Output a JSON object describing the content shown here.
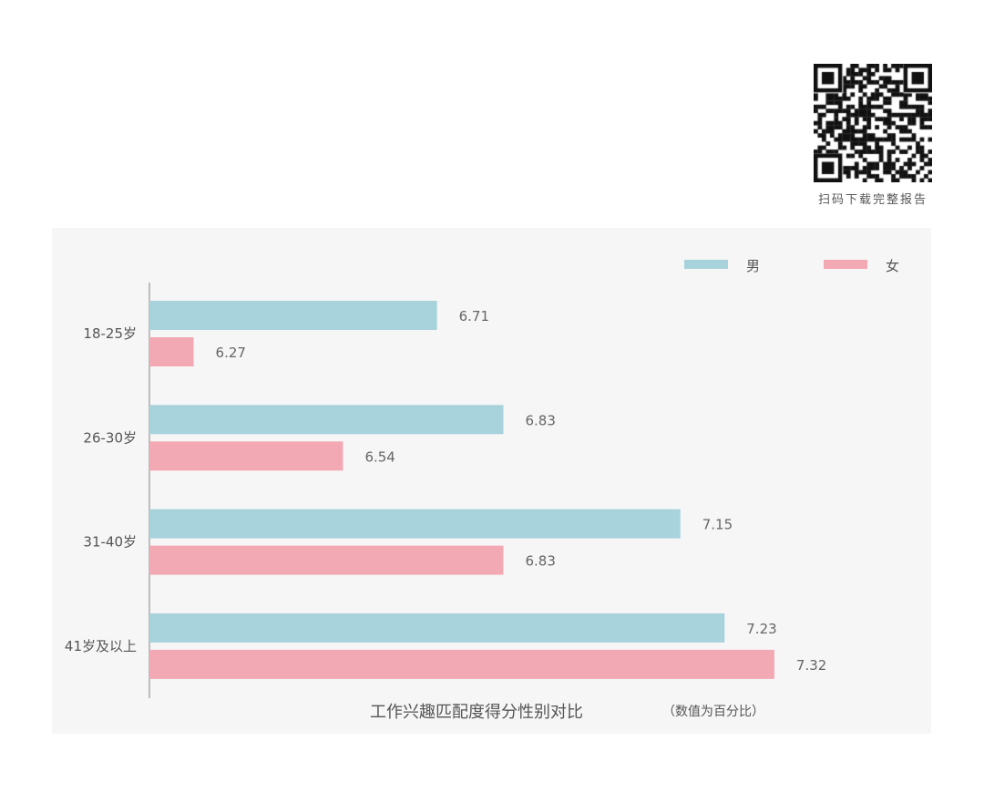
{
  "qr_caption": "扫码下载完整报告",
  "chart_data": {
    "type": "bar",
    "orientation": "horizontal",
    "title": "工作兴趣匹配度得分性别对比",
    "note": "（数值为百分比）",
    "categories": [
      "18-25岁",
      "26-30岁",
      "31-40岁",
      "41岁及以上"
    ],
    "series": [
      {
        "name": "男",
        "color": "#a8d3dc",
        "values": [
          6.71,
          6.83,
          7.15,
          7.23
        ]
      },
      {
        "name": "女",
        "color": "#f2a9b4",
        "values": [
          6.27,
          6.54,
          6.83,
          7.32
        ]
      }
    ],
    "xlim": [
      6.19,
      7.4
    ],
    "legend": "top-right",
    "grid": false
  }
}
